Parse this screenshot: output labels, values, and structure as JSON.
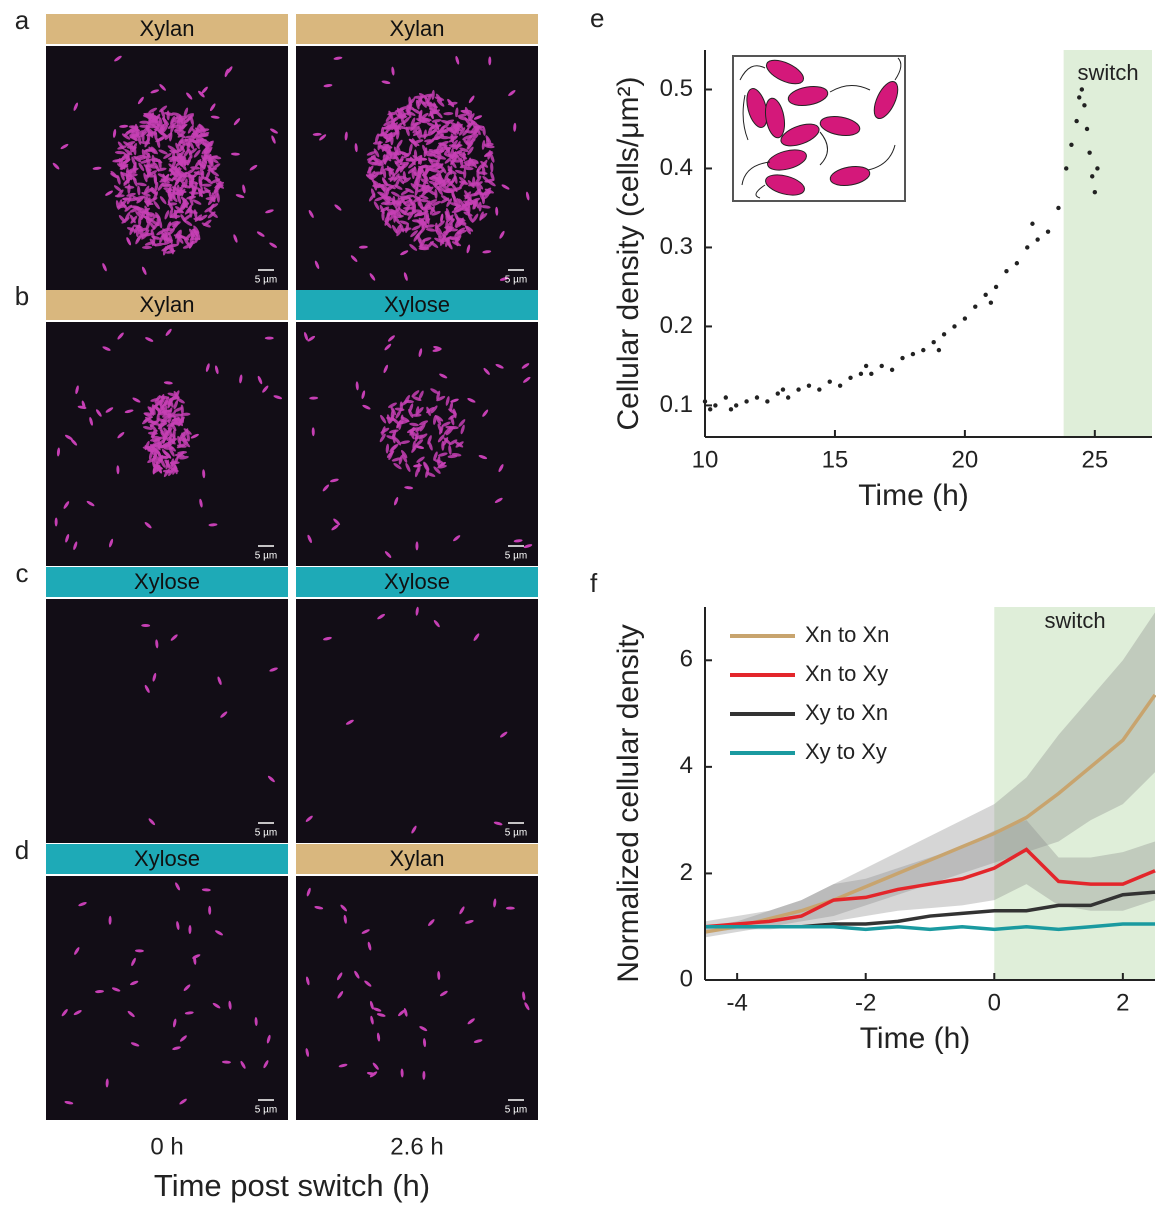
{
  "panels": [
    {
      "label": "a",
      "headers": [
        {
          "text": "Xylan",
          "color": "#d9b77e"
        },
        {
          "text": "Xylan",
          "color": "#d9b77e"
        }
      ]
    },
    {
      "label": "b",
      "headers": [
        {
          "text": "Xylan",
          "color": "#d9b77e"
        },
        {
          "text": "Xylose",
          "color": "#1eaab7"
        }
      ]
    },
    {
      "label": "c",
      "headers": [
        {
          "text": "Xylose",
          "color": "#1eaab7"
        },
        {
          "text": "Xylose",
          "color": "#1eaab7"
        }
      ]
    },
    {
      "label": "d",
      "headers": [
        {
          "text": "Xylose",
          "color": "#1eaab7"
        },
        {
          "text": "Xylan",
          "color": "#d9b77e"
        }
      ]
    }
  ],
  "scale_bar": "5 µm",
  "time_labels": [
    "0 h",
    "2.6 h"
  ],
  "time_axis_label": "Time post switch (h)",
  "chart_labels": [
    "e",
    "f"
  ],
  "chart_data": [
    {
      "type": "scatter",
      "xlabel": "Time (h)",
      "ylabel": "Cellular density (cells/μm²)",
      "annotation": "switch",
      "shade": [
        23.8,
        27.2
      ],
      "shade_color": "#dfeed9",
      "color": "#222222",
      "x": [
        10,
        10.2,
        10.4,
        10.8,
        11,
        11.2,
        11.6,
        12,
        12.4,
        12.8,
        13,
        13.2,
        13.6,
        14,
        14.4,
        14.8,
        15.2,
        15.6,
        16,
        16.2,
        16.4,
        16.8,
        17.2,
        17.6,
        18,
        18.4,
        18.8,
        19,
        19.2,
        19.6,
        20,
        20.4,
        20.8,
        21,
        21.2,
        21.6,
        22,
        22.4,
        22.6,
        22.8,
        23.2,
        23.6,
        23.9,
        24.1,
        24.3,
        24.4,
        24.5,
        24.6,
        24.7,
        24.8,
        24.9,
        25,
        25.1
      ],
      "values": [
        0.105,
        0.095,
        0.1,
        0.11,
        0.095,
        0.1,
        0.105,
        0.11,
        0.105,
        0.115,
        0.12,
        0.11,
        0.12,
        0.125,
        0.12,
        0.13,
        0.125,
        0.135,
        0.14,
        0.15,
        0.14,
        0.15,
        0.145,
        0.16,
        0.165,
        0.17,
        0.18,
        0.17,
        0.19,
        0.2,
        0.21,
        0.225,
        0.24,
        0.23,
        0.25,
        0.27,
        0.28,
        0.3,
        0.33,
        0.31,
        0.32,
        0.35,
        0.4,
        0.43,
        0.46,
        0.49,
        0.5,
        0.48,
        0.45,
        0.42,
        0.39,
        0.37,
        0.4
      ],
      "xlim": [
        10,
        27.2
      ],
      "ylim": [
        0.06,
        0.55
      ],
      "xticks": [
        10,
        15,
        20,
        25
      ],
      "yticks": [
        0.1,
        0.2,
        0.3,
        0.4,
        0.5
      ]
    },
    {
      "type": "line",
      "xlabel": "Time (h)",
      "ylabel": "Normalized cellular density",
      "annotation": "switch",
      "shade": [
        0,
        2.5
      ],
      "shade_color": "#dfeed9",
      "x": [
        -4.5,
        -4,
        -3.5,
        -3,
        -2.5,
        -2,
        -1.5,
        -1,
        -0.5,
        0,
        0.5,
        1,
        1.5,
        2,
        2.5
      ],
      "series": [
        {
          "name": "Xn to Xn",
          "color": "#c8a46e",
          "values": [
            0.9,
            1.0,
            1.15,
            1.3,
            1.5,
            1.75,
            2.0,
            2.25,
            2.5,
            2.75,
            3.05,
            3.5,
            4.0,
            4.5,
            5.35
          ],
          "upper": [
            1.0,
            1.1,
            1.3,
            1.5,
            1.8,
            2.1,
            2.4,
            2.7,
            3.0,
            3.3,
            3.8,
            4.6,
            5.3,
            6.0,
            6.9
          ],
          "lower": [
            0.8,
            0.9,
            1.0,
            1.1,
            1.2,
            1.4,
            1.6,
            1.8,
            2.0,
            2.2,
            2.4,
            2.6,
            3.0,
            3.3,
            3.9
          ]
        },
        {
          "name": "Xn to Xy",
          "color": "#e3262b",
          "values": [
            1.0,
            1.05,
            1.1,
            1.2,
            1.5,
            1.55,
            1.7,
            1.8,
            1.9,
            2.1,
            2.45,
            1.85,
            1.8,
            1.8,
            2.05
          ],
          "upper": [
            1.1,
            1.2,
            1.3,
            1.5,
            1.8,
            1.9,
            2.1,
            2.3,
            2.5,
            2.8,
            3.0,
            2.3,
            2.3,
            2.4,
            2.6
          ],
          "lower": [
            0.9,
            0.95,
            0.95,
            1.0,
            1.1,
            1.2,
            1.3,
            1.35,
            1.4,
            1.5,
            1.8,
            1.4,
            1.3,
            1.3,
            1.5
          ]
        },
        {
          "name": "Xy to Xn",
          "color": "#333333",
          "values": [
            1.0,
            1.0,
            1.0,
            1.0,
            1.05,
            1.05,
            1.1,
            1.2,
            1.25,
            1.3,
            1.3,
            1.4,
            1.4,
            1.6,
            1.65
          ]
        },
        {
          "name": "Xy to Xy",
          "color": "#1a9aa0",
          "values": [
            1.0,
            1.0,
            1.0,
            1.0,
            1.0,
            0.95,
            1.0,
            0.95,
            1.0,
            0.95,
            1.0,
            0.95,
            1.0,
            1.05,
            1.05
          ]
        }
      ],
      "xlim": [
        -4.5,
        2.5
      ],
      "ylim": [
        0,
        7
      ],
      "xticks": [
        -4,
        -2,
        0,
        2
      ],
      "yticks": [
        0,
        2,
        4,
        6
      ]
    }
  ]
}
